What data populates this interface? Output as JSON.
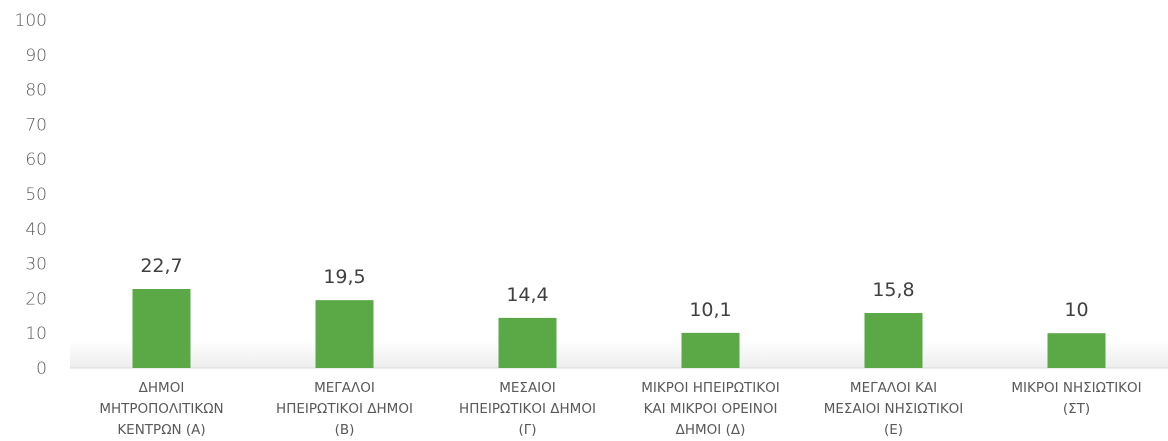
{
  "chart_data": {
    "type": "bar",
    "categories": [
      [
        "ΔΗΜΟΙ",
        "ΜΗΤΡΟΠΟΛΙΤΙΚΩΝ",
        "ΚΕΝΤΡΩΝ (Α)"
      ],
      [
        "ΜΕΓΑΛΟΙ",
        "ΗΠΕΙΡΩΤΙΚΟΙ ΔΗΜΟΙ",
        "(Β)"
      ],
      [
        "ΜΕΣΑΙΟΙ",
        "ΗΠΕΙΡΩΤΙΚΟΙ ΔΗΜΟΙ",
        "(Γ)"
      ],
      [
        "ΜΙΚΡΟΙ ΗΠΕΙΡΩΤΙΚΟΙ",
        "ΚΑΙ ΜΙΚΡΟΙ ΟΡΕΙΝΟΙ",
        "ΔΗΜΟΙ (Δ)"
      ],
      [
        "ΜΕΓΑΛΟΙ ΚΑΙ",
        "ΜΕΣΑΙΟΙ ΝΗΣΙΩΤΙΚΟΙ",
        "(Ε)"
      ],
      [
        "ΜΙΚΡΟΙ ΝΗΣΙΩΤΙΚΟΙ",
        "(ΣΤ)"
      ]
    ],
    "values": [
      22.7,
      19.5,
      14.4,
      10.1,
      15.8,
      10
    ],
    "data_labels": [
      "22,7",
      "19,5",
      "14,4",
      "10,1",
      "15,8",
      "10"
    ],
    "yticks": [
      "0",
      "10",
      "20",
      "30",
      "40",
      "50",
      "60",
      "70",
      "80",
      "90",
      "100"
    ],
    "ylim": [
      0,
      100
    ],
    "grid": false,
    "bar_color": "#5aa846",
    "title": "",
    "xlabel": "",
    "ylabel": ""
  }
}
